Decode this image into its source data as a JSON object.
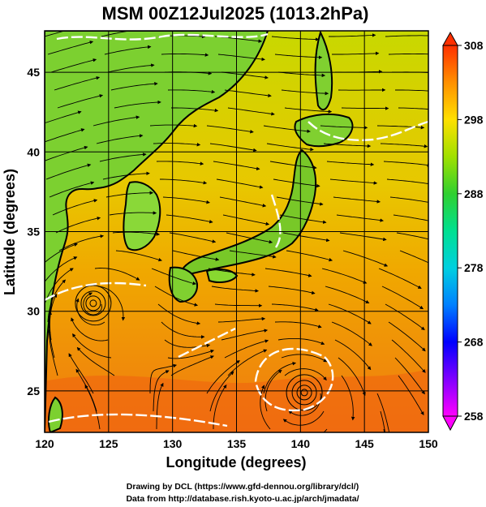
{
  "chart_data": {
    "type": "heatmap",
    "title": "MSM 00Z12Jul2025 (1013.2hPa)",
    "xlabel": "Longitude (degrees)",
    "ylabel": "Latitude  (degrees)",
    "xlim": [
      120,
      150
    ],
    "ylim": [
      22.4,
      47.6
    ],
    "x_ticks": [
      120,
      125,
      130,
      135,
      140,
      145,
      150
    ],
    "y_ticks": [
      25,
      30,
      35,
      40,
      45
    ],
    "grid": true,
    "colorbar": {
      "min": 258,
      "max": 308,
      "ticks": [
        258,
        268,
        278,
        288,
        298,
        308
      ],
      "position": "right",
      "colors": [
        "#ff00ff",
        "#8000ff",
        "#0000ff",
        "#0080ff",
        "#00d0e0",
        "#00e090",
        "#30d030",
        "#a0e000",
        "#ffe000",
        "#ff9000",
        "#ff3000"
      ]
    },
    "field_colors": {
      "land": "#7cd030",
      "sea_north": "#c8d800",
      "sea_mid": "#f0a800",
      "sea_south": "#f07810"
    },
    "vortices": [
      {
        "lon": 140.3,
        "lat": 24.9
      },
      {
        "lon": 123.8,
        "lat": 30.5
      }
    ]
  },
  "credits": {
    "line1": "Drawing by DCL (https://www.gfd-dennou.org/library/dcl/)",
    "line2": "Data from http://database.rish.kyoto-u.ac.jp/arch/jmadata/"
  }
}
